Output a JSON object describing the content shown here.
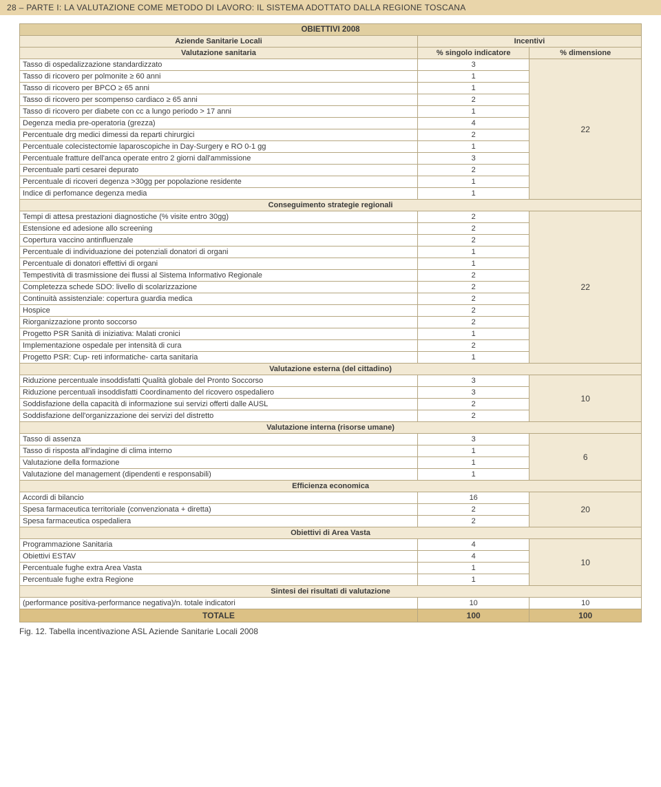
{
  "page_header": "28 – PARTE I: LA VALUTAZIONE COME METODO DI LAVORO: IL SISTEMA ADOTTATO DALLA REGIONE TOSCANA",
  "caption": "Fig. 12. Tabella incentivazione  ASL Aziende Sanitarie Locali 2008",
  "colors": {
    "header_strip": "#e9d5aa",
    "banner_bg": "#e1cfa1",
    "header_cell_bg": "#f2e9d4",
    "section_cell_bg": "#f2e9d4",
    "dim_cell_bg": "#f2e9d4",
    "total_bg": "#dcc185",
    "border": "#b5a680",
    "text": "#3a3a3a",
    "page_bg": "#ffffff"
  },
  "table": {
    "banner_title": "OBIETTIVI 2008",
    "col_headers": {
      "left": "Aziende Sanitarie Locali",
      "right": "Incentivi"
    },
    "sub_headers": {
      "title": "Valutazione sanitaria",
      "col_val": "% singolo indicatore",
      "col_dim": "% dimensione"
    },
    "sections": [
      {
        "label": null,
        "dim": "22",
        "rows": [
          {
            "label": "Tasso di ospedalizzazione standardizzato",
            "val": "3"
          },
          {
            "label": "Tasso di ricovero per polmonite ≥ 60 anni",
            "val": "1"
          },
          {
            "label": "Tasso di ricovero per BPCO ≥ 65 anni",
            "val": "1"
          },
          {
            "label": "Tasso di ricovero per scompenso cardiaco ≥ 65 anni",
            "val": "2"
          },
          {
            "label": "Tasso di ricovero per diabete con cc a lungo periodo > 17 anni",
            "val": "1"
          },
          {
            "label": "Degenza media pre-operatoria (grezza)",
            "val": "4"
          },
          {
            "label": "Percentuale drg medici dimessi da reparti chirurgici",
            "val": "2"
          },
          {
            "label": "Percentuale colecistectomie laparoscopiche in Day-Surgery e RO 0-1 gg",
            "val": "1"
          },
          {
            "label": "Percentuale fratture dell'anca operate entro 2 giorni dall'ammissione",
            "val": "3"
          },
          {
            "label": "Percentuale parti cesarei depurato",
            "val": "2"
          },
          {
            "label": "Percentuale di ricoveri degenza >30gg per popolazione residente",
            "val": "1"
          },
          {
            "label": "Indice di perfomance degenza media",
            "val": "1"
          }
        ]
      },
      {
        "label": "Conseguimento strategie regionali",
        "dim": "22",
        "rows": [
          {
            "label": "Tempi di attesa prestazioni diagnostiche (% visite entro 30gg)",
            "val": "2"
          },
          {
            "label": "Estensione ed adesione allo screening",
            "val": "2"
          },
          {
            "label": "Copertura vaccino antinfluenzale",
            "val": "2"
          },
          {
            "label": "Percentuale di individuazione dei potenziali donatori di organi",
            "val": "1"
          },
          {
            "label": "Percentuale di donatori effettivi di organi",
            "val": "1"
          },
          {
            "label": "Tempestività di trasmissione dei flussi al Sistema Informativo Regionale",
            "val": "2"
          },
          {
            "label": "Completezza schede SDO: livello di scolarizzazione",
            "val": "2"
          },
          {
            "label": "Continuità assistenziale: copertura guardia medica",
            "val": "2"
          },
          {
            "label": "Hospice",
            "val": "2"
          },
          {
            "label": "Riorganizzazione pronto soccorso",
            "val": "2"
          },
          {
            "label": "Progetto PSR Sanità di iniziativa: Malati cronici",
            "val": "1"
          },
          {
            "label": "Implementazione ospedale per intensità di cura",
            "val": "2"
          },
          {
            "label": "Progetto PSR: Cup- reti informatiche- carta sanitaria",
            "val": "1"
          }
        ]
      },
      {
        "label": "Valutazione esterna (del cittadino)",
        "dim": "10",
        "rows": [
          {
            "label": "Riduzione percentuale insoddisfatti Qualità globale del Pronto Soccorso",
            "val": "3"
          },
          {
            "label": "Riduzione percentuali insoddisfatti Coordinamento del ricovero ospedaliero",
            "val": "3"
          },
          {
            "label": "Soddisfazione della capacità di informazione sui servizi offerti dalle AUSL",
            "val": "2"
          },
          {
            "label": "Soddisfazione dell'organizzazione dei servizi del distretto",
            "val": "2"
          }
        ]
      },
      {
        "label": "Valutazione interna (risorse umane)",
        "dim": "6",
        "rows": [
          {
            "label": "Tasso di assenza",
            "val": "3"
          },
          {
            "label": "Tasso di risposta all'indagine di clima interno",
            "val": "1"
          },
          {
            "label": "Valutazione della formazione",
            "val": "1"
          },
          {
            "label": "Valutazione del management (dipendenti e responsabili)",
            "val": "1"
          }
        ]
      },
      {
        "label": "Efficienza economica",
        "dim": "20",
        "rows": [
          {
            "label": "Accordi di bilancio",
            "val": "16"
          },
          {
            "label": "Spesa farmaceutica territoriale (convenzionata + diretta)",
            "val": "2"
          },
          {
            "label": "Spesa farmaceutica ospedaliera",
            "val": "2"
          }
        ]
      },
      {
        "label": "Obiettivi di Area Vasta",
        "dim": "10",
        "rows": [
          {
            "label": "Programmazione Sanitaria",
            "val": "4"
          },
          {
            "label": "Obiettivi ESTAV",
            "val": "4"
          },
          {
            "label": "Percentuale fughe extra Area Vasta",
            "val": "1"
          },
          {
            "label": "Percentuale fughe extra Regione",
            "val": "1"
          }
        ]
      },
      {
        "label": "Sintesi dei risultati di valutazione",
        "dim": null,
        "rows": [
          {
            "label": "(performance positiva-performance negativa)/n. totale indicatori",
            "val": "10",
            "dim": "10"
          }
        ]
      }
    ],
    "total": {
      "label": "TOTALE",
      "val": "100",
      "dim": "100"
    }
  }
}
